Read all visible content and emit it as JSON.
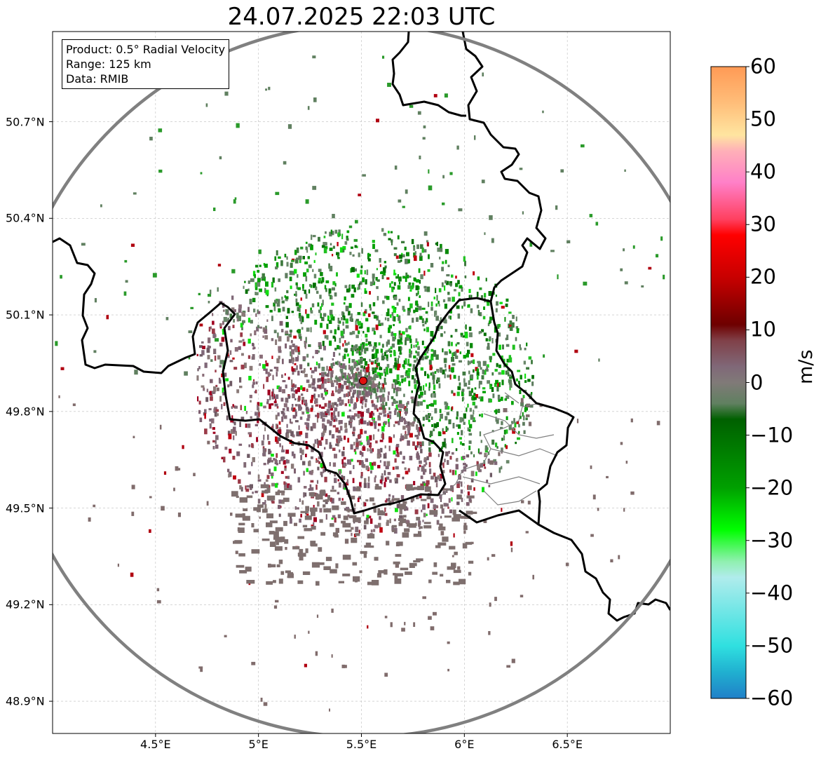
{
  "title": "24.07.2025 22:03 UTC",
  "info_box": {
    "product": "Product: 0.5° Radial Velocity",
    "range": "Range: 125 km",
    "source": "Data: RMIB"
  },
  "axes": {
    "lat_labels": [
      "50.7°N",
      "50.4°N",
      "50.1°N",
      "49.8°N",
      "49.5°N",
      "49.2°N",
      "48.9°N"
    ],
    "lon_labels": [
      "4.5°E",
      "5°E",
      "5.5°E",
      "6°E",
      "6.5°E"
    ],
    "lat_values": [
      50.7,
      50.4,
      50.1,
      49.8,
      49.5,
      49.2,
      48.9
    ],
    "lon_values": [
      4.5,
      5.0,
      5.5,
      6.0,
      6.5
    ],
    "lat_range": [
      48.8,
      50.98
    ],
    "lon_range": [
      4.0,
      7.0
    ]
  },
  "radar_site": {
    "lat": 49.914,
    "lon": 5.505,
    "marker_color": "#e01010"
  },
  "range_ring_color": "#808080",
  "colorbar": {
    "label": "m/s",
    "range": [
      -60,
      60
    ],
    "tick_labels": [
      "60",
      "50",
      "40",
      "30",
      "20",
      "10",
      "0",
      "−10",
      "−20",
      "−30",
      "−40",
      "−50",
      "−60"
    ],
    "stops": [
      {
        "v": 60,
        "c": "#ff9a55"
      },
      {
        "v": 53,
        "c": "#ffbe7a"
      },
      {
        "v": 47,
        "c": "#ffe5a0"
      },
      {
        "v": 44,
        "c": "#ffb0b8"
      },
      {
        "v": 38,
        "c": "#ff80c8"
      },
      {
        "v": 31,
        "c": "#ff4060"
      },
      {
        "v": 28,
        "c": "#ff0000"
      },
      {
        "v": 20,
        "c": "#c80000"
      },
      {
        "v": 11,
        "c": "#6e0000"
      },
      {
        "v": 8,
        "c": "#804048"
      },
      {
        "v": 3,
        "c": "#806878"
      },
      {
        "v": 0,
        "c": "#807a78"
      },
      {
        "v": -4,
        "c": "#608060"
      },
      {
        "v": -7,
        "c": "#006000"
      },
      {
        "v": -20,
        "c": "#00a000"
      },
      {
        "v": -28,
        "c": "#00ff00"
      },
      {
        "v": -34,
        "c": "#90f0b0"
      },
      {
        "v": -37,
        "c": "#b0ecec"
      },
      {
        "v": -50,
        "c": "#30e0e0"
      },
      {
        "v": -55,
        "c": "#20b0d0"
      },
      {
        "v": -60,
        "c": "#2080c8"
      }
    ]
  }
}
